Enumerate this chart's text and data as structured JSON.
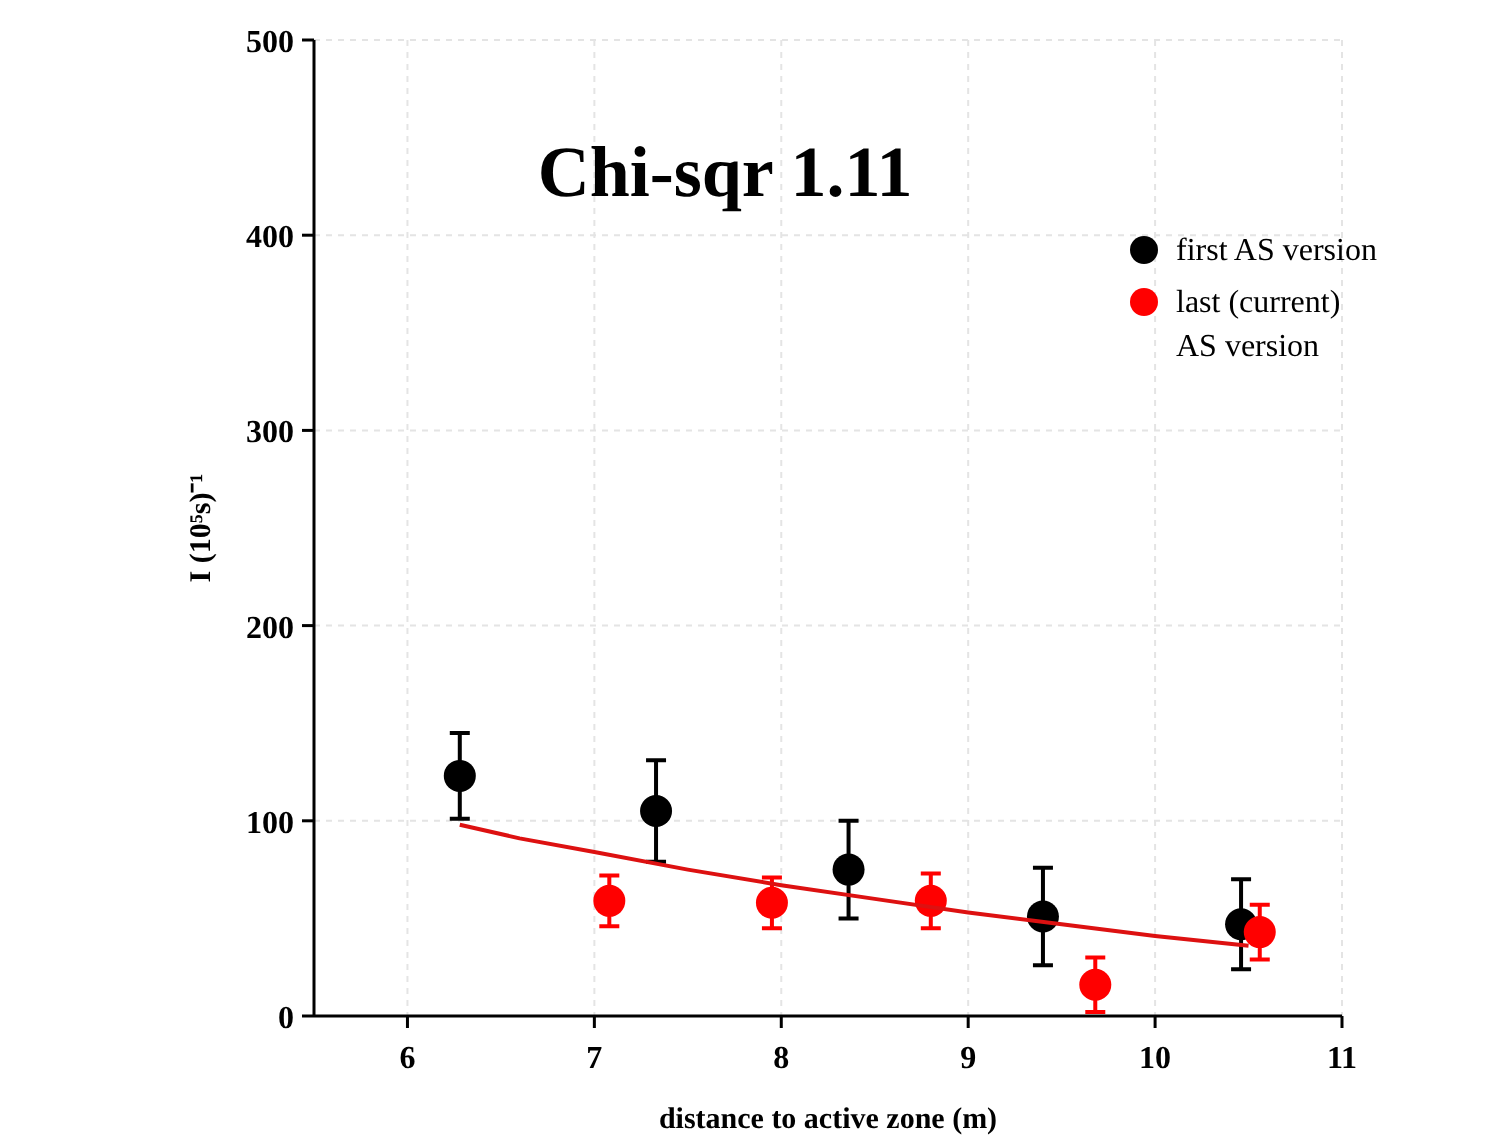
{
  "chart_data": {
    "type": "scatter",
    "title": "Chi-sqr 1.11",
    "xlabel": "distance to active zone (m)",
    "ylabel": "I (10⁵s)⁻¹",
    "xlim": [
      5.5,
      11
    ],
    "xticks": [
      6,
      7,
      8,
      9,
      10,
      11
    ],
    "ylim": [
      0,
      500
    ],
    "yticks": [
      0,
      100,
      200,
      300,
      400,
      500
    ],
    "grid": true,
    "legend": "top right",
    "series": [
      {
        "name": "first AS version",
        "color": "#000000",
        "x": [
          6.28,
          7.33,
          8.36,
          9.4,
          10.46
        ],
        "values": [
          123,
          105,
          75,
          51,
          47
        ],
        "marker": "circle",
        "errors": [
          22,
          26,
          25,
          25,
          23
        ]
      },
      {
        "name": "last (current) AS version",
        "color": "#ff0000",
        "x": [
          7.08,
          7.95,
          8.8,
          9.68,
          10.56
        ],
        "values": [
          59,
          58,
          59,
          16,
          43
        ],
        "marker": "circle",
        "errors": [
          13,
          13,
          14,
          14,
          14
        ]
      },
      {
        "type": "line",
        "marker": "none",
        "color": "#dd1111",
        "x": [
          6.28,
          6.6,
          7,
          7.5,
          8,
          8.5,
          9,
          9.5,
          10,
          10.5
        ],
        "values": [
          98,
          91,
          84,
          75,
          67,
          60,
          53,
          47,
          41,
          36
        ]
      }
    ]
  }
}
